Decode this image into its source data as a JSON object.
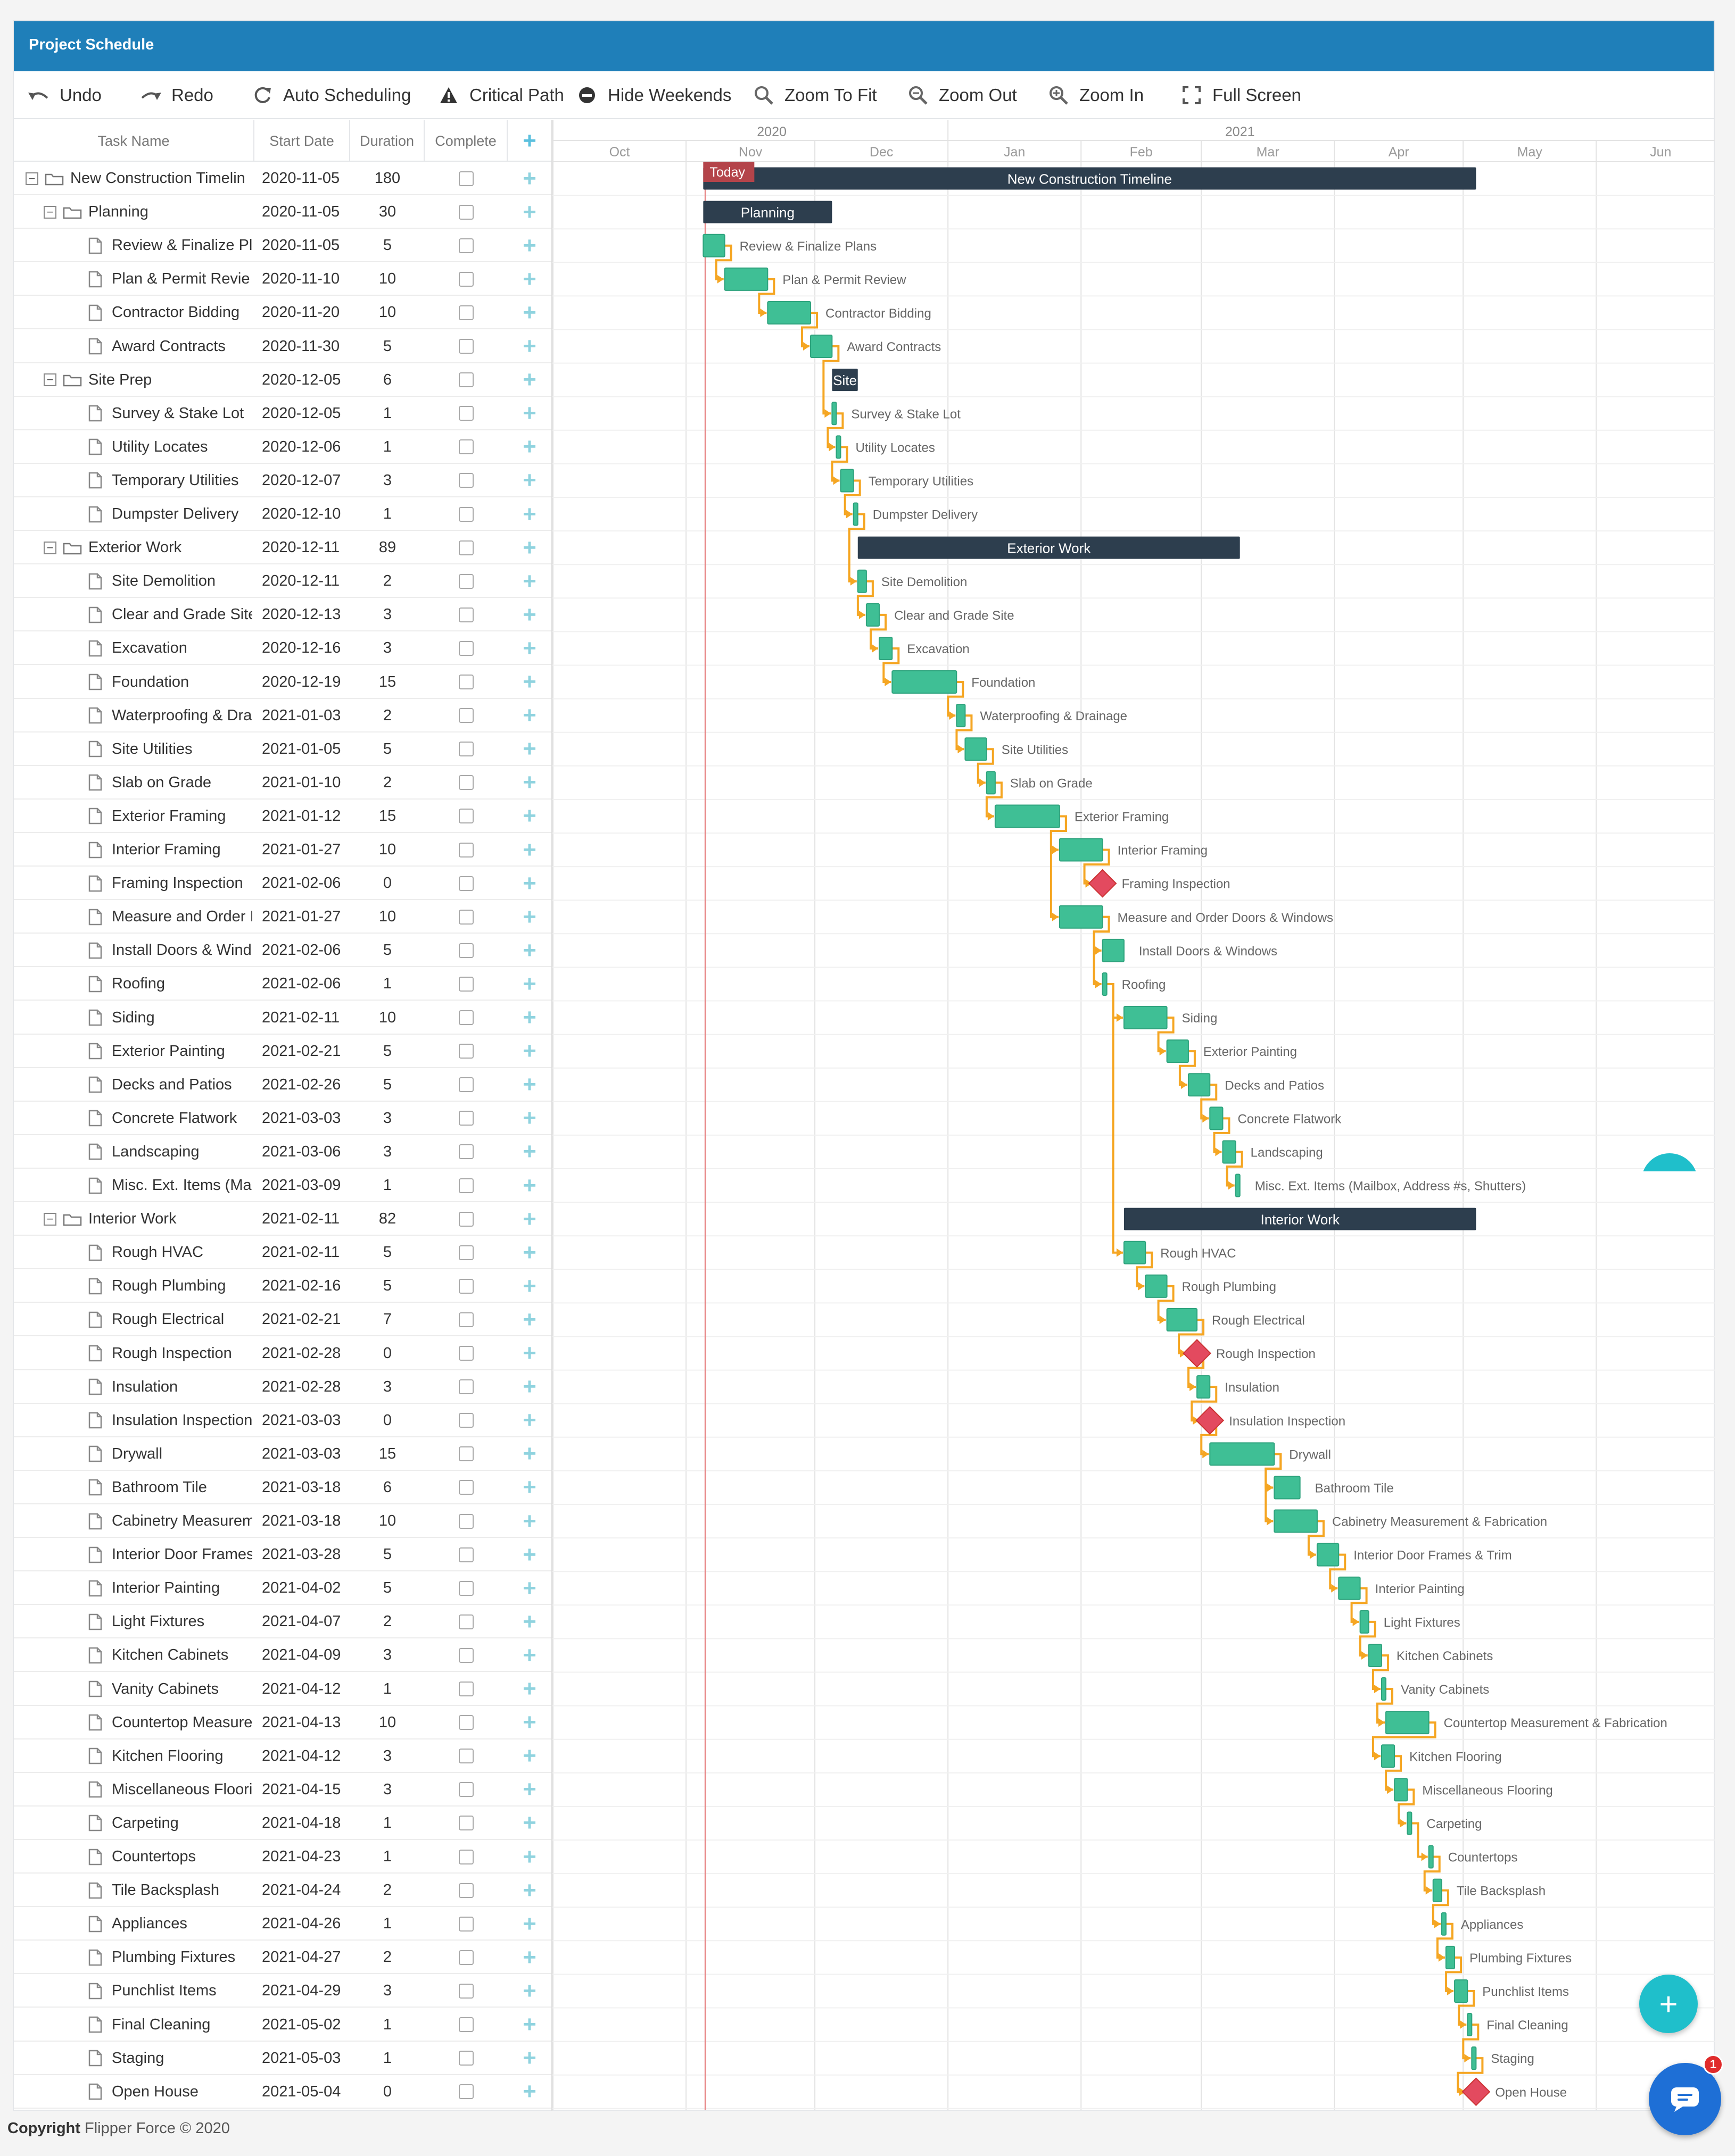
{
  "app": {
    "title": "Project Schedule",
    "footer_bold": "Copyright",
    "footer_rest": "Flipper Force © 2020",
    "notification_count": "1"
  },
  "toolbar": [
    {
      "label": "Undo",
      "icon": "undo-icon"
    },
    {
      "label": "Redo",
      "icon": "redo-icon"
    },
    {
      "label": "Auto Scheduling",
      "icon": "refresh-icon"
    },
    {
      "label": "Critical Path",
      "icon": "warning-icon"
    },
    {
      "label": "Hide Weekends",
      "icon": "minus-circle-icon"
    },
    {
      "label": "Zoom To Fit",
      "icon": "search-icon"
    },
    {
      "label": "Zoom Out",
      "icon": "zoom-out-icon"
    },
    {
      "label": "Zoom In",
      "icon": "zoom-in-icon"
    },
    {
      "label": "Full Screen",
      "icon": "fullscreen-icon"
    }
  ],
  "grid": {
    "headers": {
      "task": "Task Name",
      "start": "Start Date",
      "duration": "Duration",
      "complete": "Complete"
    }
  },
  "timeline": {
    "years": [
      "2020",
      "2021"
    ],
    "months": [
      "Oct",
      "Nov",
      "Dec",
      "Jan",
      "Feb",
      "Mar",
      "Apr",
      "May",
      "Jun"
    ],
    "today_label": "Today",
    "today_date": "2020-11-05"
  },
  "colors": {
    "header": "#1f7fb9",
    "task": "#3fbf95",
    "summary": "#2d3e4e",
    "milestone": "#e34a5f",
    "link": "#f5a623",
    "today": "#e88a8a",
    "plus": "#8fd3df"
  },
  "tasks": [
    {
      "name": "New Construction Timelin",
      "bar_label": "New Construction Timeline",
      "start": "2020-11-05",
      "duration": "180",
      "level": 0,
      "type": "project"
    },
    {
      "name": "Planning",
      "bar_label": "Planning",
      "start": "2020-11-05",
      "duration": "30",
      "level": 1,
      "type": "project"
    },
    {
      "name": "Review & Finalize Pl",
      "bar_label": "Review & Finalize Plans",
      "start": "2020-11-05",
      "duration": "5",
      "level": 2,
      "type": "task"
    },
    {
      "name": "Plan & Permit Revie",
      "bar_label": "Plan & Permit Review",
      "start": "2020-11-10",
      "duration": "10",
      "level": 2,
      "type": "task"
    },
    {
      "name": "Contractor Bidding",
      "bar_label": "Contractor Bidding",
      "start": "2020-11-20",
      "duration": "10",
      "level": 2,
      "type": "task"
    },
    {
      "name": "Award Contracts",
      "bar_label": "Award Contracts",
      "start": "2020-11-30",
      "duration": "5",
      "level": 2,
      "type": "task"
    },
    {
      "name": "Site Prep",
      "bar_label": "Site",
      "start": "2020-12-05",
      "duration": "6",
      "level": 1,
      "type": "project"
    },
    {
      "name": "Survey & Stake Lot",
      "bar_label": "Survey & Stake Lot",
      "start": "2020-12-05",
      "duration": "1",
      "level": 2,
      "type": "task"
    },
    {
      "name": "Utility Locates",
      "bar_label": "Utility Locates",
      "start": "2020-12-06",
      "duration": "1",
      "level": 2,
      "type": "task"
    },
    {
      "name": "Temporary Utilities",
      "bar_label": "Temporary Utilities",
      "start": "2020-12-07",
      "duration": "3",
      "level": 2,
      "type": "task"
    },
    {
      "name": "Dumpster Delivery",
      "bar_label": "Dumpster Delivery",
      "start": "2020-12-10",
      "duration": "1",
      "level": 2,
      "type": "task"
    },
    {
      "name": "Exterior Work",
      "bar_label": "Exterior Work",
      "start": "2020-12-11",
      "duration": "89",
      "level": 1,
      "type": "project"
    },
    {
      "name": "Site Demolition",
      "bar_label": "Site Demolition",
      "start": "2020-12-11",
      "duration": "2",
      "level": 2,
      "type": "task"
    },
    {
      "name": "Clear and Grade Site",
      "bar_label": "Clear and Grade Site",
      "start": "2020-12-13",
      "duration": "3",
      "level": 2,
      "type": "task"
    },
    {
      "name": "Excavation",
      "bar_label": "Excavation",
      "start": "2020-12-16",
      "duration": "3",
      "level": 2,
      "type": "task"
    },
    {
      "name": "Foundation",
      "bar_label": "Foundation",
      "start": "2020-12-19",
      "duration": "15",
      "level": 2,
      "type": "task"
    },
    {
      "name": "Waterproofing & Dra",
      "bar_label": "Waterproofing & Drainage",
      "start": "2021-01-03",
      "duration": "2",
      "level": 2,
      "type": "task"
    },
    {
      "name": "Site Utilities",
      "bar_label": "Site Utilities",
      "start": "2021-01-05",
      "duration": "5",
      "level": 2,
      "type": "task"
    },
    {
      "name": "Slab on Grade",
      "bar_label": "Slab on Grade",
      "start": "2021-01-10",
      "duration": "2",
      "level": 2,
      "type": "task"
    },
    {
      "name": "Exterior Framing",
      "bar_label": "Exterior Framing",
      "start": "2021-01-12",
      "duration": "15",
      "level": 2,
      "type": "task"
    },
    {
      "name": "Interior Framing",
      "bar_label": "Interior Framing",
      "start": "2021-01-27",
      "duration": "10",
      "level": 2,
      "type": "task"
    },
    {
      "name": "Framing Inspection",
      "bar_label": "Framing Inspection",
      "start": "2021-02-06",
      "duration": "0",
      "level": 2,
      "type": "milestone"
    },
    {
      "name": "Measure and Order I",
      "bar_label": "Measure and Order Doors & Windows",
      "start": "2021-01-27",
      "duration": "10",
      "level": 2,
      "type": "task"
    },
    {
      "name": "Install Doors & Wind",
      "bar_label": "Install Doors & Windows",
      "start": "2021-02-06",
      "duration": "5",
      "level": 2,
      "type": "task"
    },
    {
      "name": "Roofing",
      "bar_label": "Roofing",
      "start": "2021-02-06",
      "duration": "1",
      "level": 2,
      "type": "task"
    },
    {
      "name": "Siding",
      "bar_label": "Siding",
      "start": "2021-02-11",
      "duration": "10",
      "level": 2,
      "type": "task"
    },
    {
      "name": "Exterior Painting",
      "bar_label": "Exterior Painting",
      "start": "2021-02-21",
      "duration": "5",
      "level": 2,
      "type": "task"
    },
    {
      "name": "Decks and Patios",
      "bar_label": "Decks and Patios",
      "start": "2021-02-26",
      "duration": "5",
      "level": 2,
      "type": "task"
    },
    {
      "name": "Concrete Flatwork",
      "bar_label": "Concrete Flatwork",
      "start": "2021-03-03",
      "duration": "3",
      "level": 2,
      "type": "task"
    },
    {
      "name": "Landscaping",
      "bar_label": "Landscaping",
      "start": "2021-03-06",
      "duration": "3",
      "level": 2,
      "type": "task"
    },
    {
      "name": "Misc. Ext. Items (Ma",
      "bar_label": "Misc. Ext. Items (Mailbox, Address #s, Shutters)",
      "start": "2021-03-09",
      "duration": "1",
      "level": 2,
      "type": "task"
    },
    {
      "name": "Interior Work",
      "bar_label": "Interior Work",
      "start": "2021-02-11",
      "duration": "82",
      "level": 1,
      "type": "project"
    },
    {
      "name": "Rough HVAC",
      "bar_label": "Rough HVAC",
      "start": "2021-02-11",
      "duration": "5",
      "level": 2,
      "type": "task"
    },
    {
      "name": "Rough Plumbing",
      "bar_label": "Rough Plumbing",
      "start": "2021-02-16",
      "duration": "5",
      "level": 2,
      "type": "task"
    },
    {
      "name": "Rough Electrical",
      "bar_label": "Rough Electrical",
      "start": "2021-02-21",
      "duration": "7",
      "level": 2,
      "type": "task"
    },
    {
      "name": "Rough Inspection",
      "bar_label": "Rough Inspection",
      "start": "2021-02-28",
      "duration": "0",
      "level": 2,
      "type": "milestone"
    },
    {
      "name": "Insulation",
      "bar_label": "Insulation",
      "start": "2021-02-28",
      "duration": "3",
      "level": 2,
      "type": "task"
    },
    {
      "name": "Insulation Inspection",
      "bar_label": "Insulation Inspection",
      "start": "2021-03-03",
      "duration": "0",
      "level": 2,
      "type": "milestone"
    },
    {
      "name": "Drywall",
      "bar_label": "Drywall",
      "start": "2021-03-03",
      "duration": "15",
      "level": 2,
      "type": "task"
    },
    {
      "name": "Bathroom Tile",
      "bar_label": "Bathroom Tile",
      "start": "2021-03-18",
      "duration": "6",
      "level": 2,
      "type": "task"
    },
    {
      "name": "Cabinetry Measurem",
      "bar_label": "Cabinetry Measurement & Fabrication",
      "start": "2021-03-18",
      "duration": "10",
      "level": 2,
      "type": "task"
    },
    {
      "name": "Interior Door Frames",
      "bar_label": "Interior Door Frames & Trim",
      "start": "2021-03-28",
      "duration": "5",
      "level": 2,
      "type": "task"
    },
    {
      "name": "Interior Painting",
      "bar_label": "Interior Painting",
      "start": "2021-04-02",
      "duration": "5",
      "level": 2,
      "type": "task"
    },
    {
      "name": "Light Fixtures",
      "bar_label": "Light Fixtures",
      "start": "2021-04-07",
      "duration": "2",
      "level": 2,
      "type": "task"
    },
    {
      "name": "Kitchen Cabinets",
      "bar_label": "Kitchen Cabinets",
      "start": "2021-04-09",
      "duration": "3",
      "level": 2,
      "type": "task"
    },
    {
      "name": "Vanity Cabinets",
      "bar_label": "Vanity Cabinets",
      "start": "2021-04-12",
      "duration": "1",
      "level": 2,
      "type": "task"
    },
    {
      "name": "Countertop Measure",
      "bar_label": "Countertop Measurement & Fabrication",
      "start": "2021-04-13",
      "duration": "10",
      "level": 2,
      "type": "task"
    },
    {
      "name": "Kitchen Flooring",
      "bar_label": "Kitchen Flooring",
      "start": "2021-04-12",
      "duration": "3",
      "level": 2,
      "type": "task"
    },
    {
      "name": "Miscellaneous Floori",
      "bar_label": "Miscellaneous Flooring",
      "start": "2021-04-15",
      "duration": "3",
      "level": 2,
      "type": "task"
    },
    {
      "name": "Carpeting",
      "bar_label": "Carpeting",
      "start": "2021-04-18",
      "duration": "1",
      "level": 2,
      "type": "task"
    },
    {
      "name": "Countertops",
      "bar_label": "Countertops",
      "start": "2021-04-23",
      "duration": "1",
      "level": 2,
      "type": "task"
    },
    {
      "name": "Tile Backsplash",
      "bar_label": "Tile Backsplash",
      "start": "2021-04-24",
      "duration": "2",
      "level": 2,
      "type": "task"
    },
    {
      "name": "Appliances",
      "bar_label": "Appliances",
      "start": "2021-04-26",
      "duration": "1",
      "level": 2,
      "type": "task"
    },
    {
      "name": "Plumbing Fixtures",
      "bar_label": "Plumbing Fixtures",
      "start": "2021-04-27",
      "duration": "2",
      "level": 2,
      "type": "task"
    },
    {
      "name": "Punchlist Items",
      "bar_label": "Punchlist Items",
      "start": "2021-04-29",
      "duration": "3",
      "level": 2,
      "type": "task"
    },
    {
      "name": "Final Cleaning",
      "bar_label": "Final Cleaning",
      "start": "2021-05-02",
      "duration": "1",
      "level": 2,
      "type": "task"
    },
    {
      "name": "Staging",
      "bar_label": "Staging",
      "start": "2021-05-03",
      "duration": "1",
      "level": 2,
      "type": "task"
    },
    {
      "name": "Open House",
      "bar_label": "Open House",
      "start": "2021-05-04",
      "duration": "0",
      "level": 2,
      "type": "milestone"
    }
  ]
}
